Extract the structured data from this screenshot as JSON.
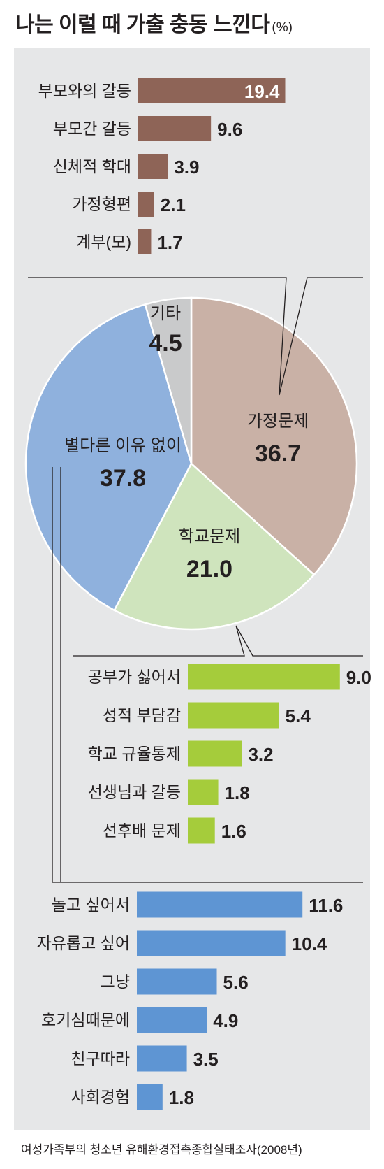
{
  "title": "나는 이럴 때 가출 충동 느낀다",
  "unit": "(%)",
  "source": "여성가족부의 청소년 유해환경접촉종합실태조사(2008년)",
  "chart_data": {
    "pie": {
      "type": "pie",
      "slices": [
        {
          "key": "home",
          "label": "가정문제",
          "value": 36.7,
          "value_label": "36.7",
          "color": "#c9b1a6"
        },
        {
          "key": "school",
          "label": "학교문제",
          "value": 21.0,
          "value_label": "21.0",
          "color": "#cfe4bd"
        },
        {
          "key": "none",
          "label": "별다른 이유 없이",
          "value": 37.8,
          "value_label": "37.8",
          "color": "#8fb1dd"
        },
        {
          "key": "etc",
          "label": "기타",
          "value": 4.5,
          "value_label": "4.5",
          "color": "#c9cacb"
        }
      ]
    },
    "bars": [
      {
        "key": "home",
        "type": "bar",
        "color": "#8e6457",
        "categories": [
          "부모와의 갈등",
          "부모간 갈등",
          "신체적 학대",
          "가정형편",
          "계부(모)"
        ],
        "values": [
          19.4,
          9.6,
          3.9,
          2.1,
          1.7
        ],
        "value_labels": [
          "19.4",
          "9.6",
          "3.9",
          "2.1",
          "1.7"
        ]
      },
      {
        "key": "school",
        "type": "bar",
        "color": "#a5cc3b",
        "categories": [
          "공부가 싫어서",
          "성적 부담감",
          "학교 규율통제",
          "선생님과 갈등",
          "선후배 문제"
        ],
        "values": [
          9.0,
          5.4,
          3.2,
          1.8,
          1.6
        ],
        "value_labels": [
          "9.0",
          "5.4",
          "3.2",
          "1.8",
          "1.6"
        ]
      },
      {
        "key": "none",
        "type": "bar",
        "color": "#5e95d3",
        "categories": [
          "놀고 싶어서",
          "자유롭고 싶어",
          "그냥",
          "호기심때문에",
          "친구따라",
          "사회경험"
        ],
        "values": [
          11.6,
          10.4,
          5.6,
          4.9,
          3.5,
          1.8
        ],
        "value_labels": [
          "11.6",
          "10.4",
          "5.6",
          "4.9",
          "3.5",
          "1.8"
        ]
      }
    ]
  }
}
